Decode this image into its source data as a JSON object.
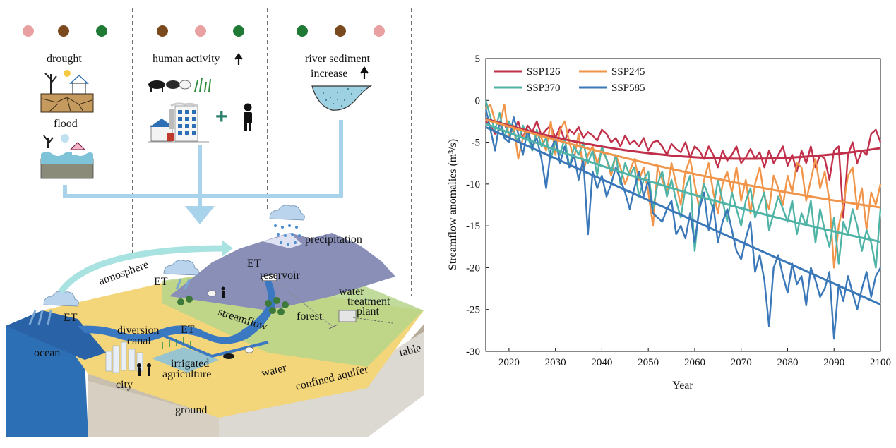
{
  "illustration": {
    "dot_colors": {
      "pink": "#e8a0a0",
      "brown": "#7a4a1e",
      "green": "#2e7d32"
    },
    "panels": [
      {
        "dots": [
          "pink",
          "brown",
          "green"
        ],
        "label_lines": [
          "drought"
        ],
        "label2": "flood"
      },
      {
        "dots": [
          "brown",
          "pink",
          "green"
        ],
        "label_lines": [
          "human activity"
        ]
      },
      {
        "dots": [
          "green",
          "brown",
          "pink"
        ],
        "label_lines": [
          "river sediment",
          "increase"
        ]
      }
    ],
    "plus_sign": "+",
    "labels": {
      "drought": "drought",
      "flood": "flood",
      "human_activity": "human activity",
      "river_sediment": "river sediment",
      "increase": "increase",
      "precipitation": "precipitation",
      "atmosphere": "atmosphere",
      "et_ocean": "ET",
      "et_cloud": "ET",
      "et_canal": "ET",
      "et_reservoir": "ET",
      "reservoir": "reservoir",
      "water": "water",
      "treatment": "treatment",
      "plant": "plant",
      "streamflow": "streamflow",
      "forest": "forest",
      "diversion": "diversion",
      "canal": "canal",
      "ocean": "ocean",
      "irrigated": "irrigated",
      "agriculture": "agriculture",
      "city": "city",
      "ground": "ground",
      "water2": "water",
      "confined_aquifer": "confined aquifer",
      "table": "table"
    },
    "colors": {
      "ocean": "#2d6fb5",
      "land": "#f3d57a",
      "ground": "#c8c0b4",
      "mountain": "#8a8fb8",
      "river": "#3b78c2",
      "arrow": "#a9d3ea",
      "soil_brown": "#b08b5c"
    }
  },
  "chart_data": {
    "type": "line",
    "ylabel": "Streamflow anomalies (m³/s)",
    "xlabel": "Year",
    "xlim": [
      2015,
      2100
    ],
    "ylim": [
      -30,
      5
    ],
    "xticks": [
      2020,
      2030,
      2040,
      2050,
      2060,
      2070,
      2080,
      2090,
      2100
    ],
    "yticks": [
      5,
      0,
      -5,
      -10,
      -15,
      -20,
      -25,
      -30
    ],
    "legend_position": "top-left",
    "series": [
      {
        "name": "SSP126",
        "color": "#c1304a",
        "x": [
          2015,
          2016,
          2017,
          2018,
          2019,
          2020,
          2021,
          2022,
          2023,
          2024,
          2025,
          2026,
          2027,
          2028,
          2029,
          2030,
          2031,
          2032,
          2033,
          2034,
          2035,
          2036,
          2037,
          2038,
          2039,
          2040,
          2041,
          2042,
          2043,
          2044,
          2045,
          2046,
          2047,
          2048,
          2049,
          2050,
          2051,
          2052,
          2053,
          2054,
          2055,
          2056,
          2057,
          2058,
          2059,
          2060,
          2061,
          2062,
          2063,
          2064,
          2065,
          2066,
          2067,
          2068,
          2069,
          2070,
          2071,
          2072,
          2073,
          2074,
          2075,
          2076,
          2077,
          2078,
          2079,
          2080,
          2081,
          2082,
          2083,
          2084,
          2085,
          2086,
          2087,
          2088,
          2089,
          2090,
          2091,
          2092,
          2093,
          2094,
          2095,
          2096,
          2097,
          2098,
          2099,
          2100
        ],
        "values": [
          -2.5,
          -3,
          -4,
          -3.5,
          -2.8,
          -4,
          -3.5,
          -2.5,
          -4.5,
          -3,
          -3.8,
          -2.5,
          -4.2,
          -3.5,
          -3,
          -4.5,
          -3.2,
          -4.8,
          -3.5,
          -4,
          -3.2,
          -4.5,
          -3.8,
          -4.2,
          -4.8,
          -3.5,
          -4,
          -5,
          -4.5,
          -5.5,
          -4.2,
          -5.2,
          -4.8,
          -5.5,
          -4.5,
          -6,
          -5,
          -4.8,
          -5.5,
          -6.5,
          -5.2,
          -5.8,
          -6.2,
          -5,
          -6.8,
          -5.5,
          -6,
          -7,
          -5.5,
          -6.5,
          -8,
          -6,
          -7.2,
          -6.5,
          -5.5,
          -7.5,
          -6.8,
          -5.8,
          -7,
          -6.2,
          -8,
          -6,
          -7.5,
          -6.5,
          -5.5,
          -7.8,
          -6.5,
          -8.5,
          -6,
          -7.5,
          -5.5,
          -8,
          -6.5,
          -7,
          -9.5,
          -6,
          -5.5,
          -14,
          -6.5,
          -5,
          -7.5,
          -6,
          -6.5,
          -4,
          -3.5,
          -5
        ],
        "trend": [
          -2.2,
          -6.7,
          -5.7
        ]
      },
      {
        "name": "SSP245",
        "color": "#f0954a",
        "x": [
          2015,
          2016,
          2017,
          2018,
          2019,
          2020,
          2021,
          2022,
          2023,
          2024,
          2025,
          2026,
          2027,
          2028,
          2029,
          2030,
          2031,
          2032,
          2033,
          2034,
          2035,
          2036,
          2037,
          2038,
          2039,
          2040,
          2041,
          2042,
          2043,
          2044,
          2045,
          2046,
          2047,
          2048,
          2049,
          2050,
          2051,
          2052,
          2053,
          2054,
          2055,
          2056,
          2057,
          2058,
          2059,
          2060,
          2061,
          2062,
          2063,
          2064,
          2065,
          2066,
          2067,
          2068,
          2069,
          2070,
          2071,
          2072,
          2073,
          2074,
          2075,
          2076,
          2077,
          2078,
          2079,
          2080,
          2081,
          2082,
          2083,
          2084,
          2085,
          2086,
          2087,
          2088,
          2089,
          2090,
          2091,
          2092,
          2093,
          2094,
          2095,
          2096,
          2097,
          2098,
          2099,
          2100
        ],
        "values": [
          -1,
          -0.5,
          -2.5,
          -3,
          -0.5,
          -4.5,
          -3,
          -7,
          -4.5,
          -3.5,
          -6,
          -4,
          -4.5,
          -6,
          -2.5,
          -6.5,
          -3.5,
          -2.5,
          -5,
          -7,
          -4,
          -8.5,
          -6.5,
          -5.5,
          -7.5,
          -6,
          -7,
          -9,
          -6.5,
          -8,
          -10,
          -8.5,
          -7,
          -9.5,
          -8,
          -11,
          -15,
          -8,
          -9.5,
          -11,
          -7.5,
          -10,
          -12.5,
          -8.5,
          -7,
          -10,
          -13,
          -9.5,
          -7.5,
          -11,
          -13.5,
          -10,
          -8.5,
          -11,
          -8,
          -12,
          -9.5,
          -13.5,
          -10,
          -8,
          -11.5,
          -13,
          -9,
          -10.5,
          -12.5,
          -9,
          -11,
          -7.5,
          -8,
          -12,
          -9.5,
          -7,
          -10.5,
          -8.5,
          -12,
          -20,
          -15,
          -12.5,
          -9,
          -8,
          -13,
          -10.5,
          -15.5,
          -11,
          -12.5,
          -10
        ],
        "trend": [
          -2.3,
          -8.5,
          -12.8
        ]
      },
      {
        "name": "SSP370",
        "color": "#4fb3a6",
        "x": [
          2015,
          2016,
          2017,
          2018,
          2019,
          2020,
          2021,
          2022,
          2023,
          2024,
          2025,
          2026,
          2027,
          2028,
          2029,
          2030,
          2031,
          2032,
          2033,
          2034,
          2035,
          2036,
          2037,
          2038,
          2039,
          2040,
          2041,
          2042,
          2043,
          2044,
          2045,
          2046,
          2047,
          2048,
          2049,
          2050,
          2051,
          2052,
          2053,
          2054,
          2055,
          2056,
          2057,
          2058,
          2059,
          2060,
          2061,
          2062,
          2063,
          2064,
          2065,
          2066,
          2067,
          2068,
          2069,
          2070,
          2071,
          2072,
          2073,
          2074,
          2075,
          2076,
          2077,
          2078,
          2079,
          2080,
          2081,
          2082,
          2083,
          2084,
          2085,
          2086,
          2087,
          2088,
          2089,
          2090,
          2091,
          2092,
          2093,
          2094,
          2095,
          2096,
          2097,
          2098,
          2099,
          2100
        ],
        "values": [
          0,
          -2,
          -3.5,
          -1.5,
          -4.5,
          -2.5,
          -3.8,
          -5,
          -3,
          -4.2,
          -6,
          -3.5,
          -5.5,
          -4.5,
          -7,
          -5,
          -6.5,
          -4.5,
          -8,
          -5.5,
          -6.5,
          -5,
          -7.5,
          -6,
          -9,
          -5.5,
          -7,
          -8.5,
          -6.5,
          -10,
          -7.5,
          -9,
          -8,
          -11.5,
          -9.5,
          -8.5,
          -13,
          -10,
          -8.5,
          -11.5,
          -9.5,
          -12,
          -14,
          -10.5,
          -9,
          -18,
          -12.5,
          -10,
          -11.5,
          -13,
          -9.5,
          -12,
          -14.5,
          -11,
          -13,
          -15,
          -12,
          -10.5,
          -14,
          -12.5,
          -11,
          -15.5,
          -13.5,
          -11.5,
          -13,
          -14.5,
          -12,
          -16,
          -13.5,
          -15,
          -12,
          -17,
          -13,
          -15.5,
          -17.5,
          -14,
          -19.5,
          -14.5,
          -16,
          -13,
          -15,
          -18,
          -15.5,
          -17,
          -20,
          -13
        ],
        "trend": [
          -2.8,
          -10.9,
          -16.9
        ]
      },
      {
        "name": "SSP585",
        "color": "#3a78b9",
        "x": [
          2015,
          2016,
          2017,
          2018,
          2019,
          2020,
          2021,
          2022,
          2023,
          2024,
          2025,
          2026,
          2027,
          2028,
          2029,
          2030,
          2031,
          2032,
          2033,
          2034,
          2035,
          2036,
          2037,
          2038,
          2039,
          2040,
          2041,
          2042,
          2043,
          2044,
          2045,
          2046,
          2047,
          2048,
          2049,
          2050,
          2051,
          2052,
          2053,
          2054,
          2055,
          2056,
          2057,
          2058,
          2059,
          2060,
          2061,
          2062,
          2063,
          2064,
          2065,
          2066,
          2067,
          2068,
          2069,
          2070,
          2071,
          2072,
          2073,
          2074,
          2075,
          2076,
          2077,
          2078,
          2079,
          2080,
          2081,
          2082,
          2083,
          2084,
          2085,
          2086,
          2087,
          2088,
          2089,
          2090,
          2091,
          2092,
          2093,
          2094,
          2095,
          2096,
          2097,
          2098,
          2099,
          2100
        ],
        "values": [
          -1,
          -3.5,
          -6,
          -2.5,
          -4.5,
          -5,
          -2,
          -4,
          -6.5,
          -3.5,
          -5.5,
          -4.5,
          -7,
          -10.5,
          -6,
          -4.5,
          -7.5,
          -5.5,
          -8,
          -6.5,
          -9.5,
          -7,
          -16,
          -8.5,
          -10.5,
          -9,
          -11.5,
          -10,
          -8,
          -9.5,
          -11,
          -13,
          -10.5,
          -8.5,
          -11.5,
          -9.5,
          -13.5,
          -14,
          -14.5,
          -13,
          -12,
          -16,
          -15,
          -16.5,
          -13.5,
          -17,
          -13,
          -11,
          -15.5,
          -12.5,
          -17,
          -14.5,
          -13,
          -15.5,
          -18,
          -19,
          -16.5,
          -14.5,
          -20.5,
          -18.5,
          -21.5,
          -27,
          -20,
          -18.5,
          -21,
          -23,
          -19.5,
          -22,
          -21,
          -24.5,
          -20,
          -21.5,
          -23.5,
          -22.5,
          -20.5,
          -28.5,
          -22,
          -24,
          -21,
          -23,
          -25,
          -22.5,
          -20.5,
          -23.5,
          -21,
          -20
        ],
        "trend": [
          -3.2,
          -13.8,
          -24.4
        ]
      }
    ]
  }
}
